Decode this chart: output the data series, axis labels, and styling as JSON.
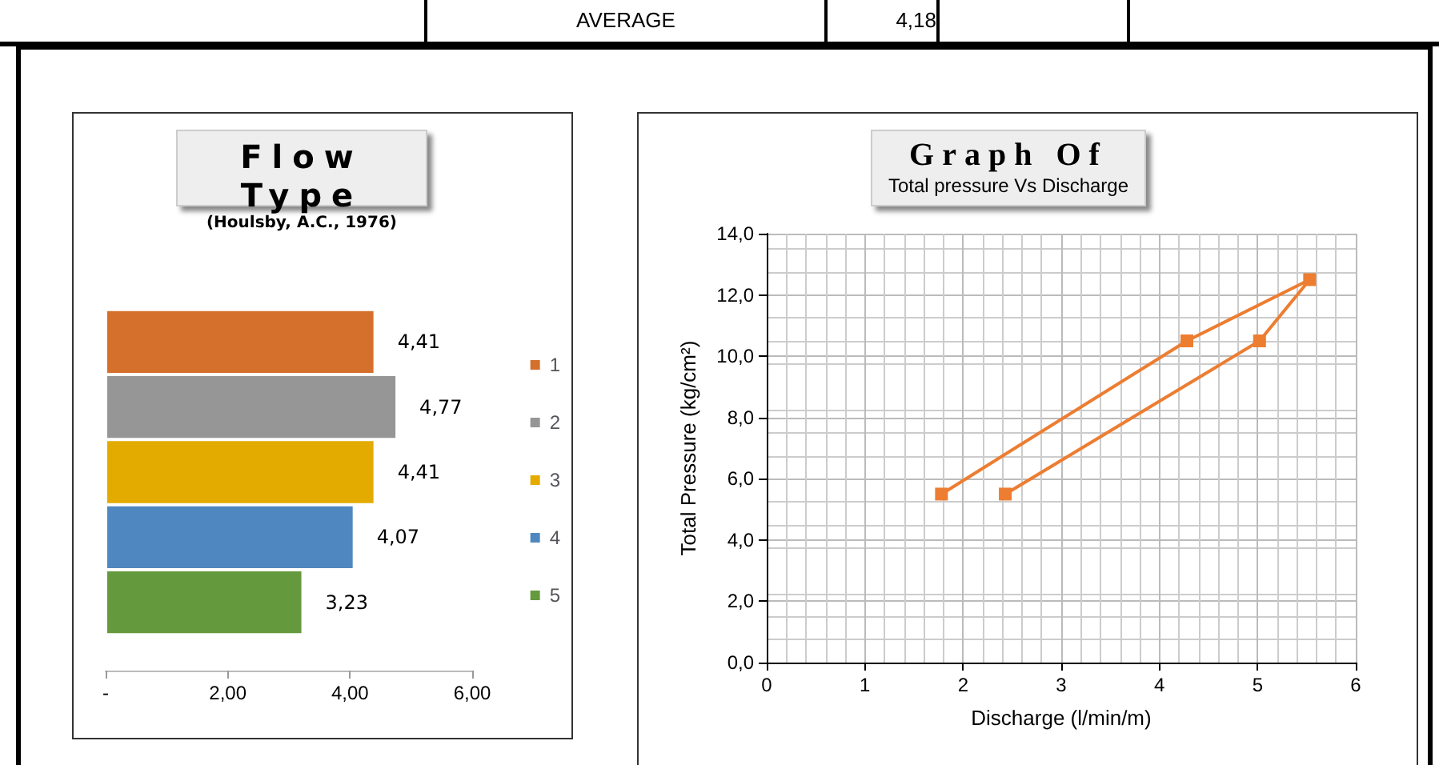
{
  "chart_data": [
    {
      "type": "bar",
      "title": "Flow Type",
      "subtitle": "(Houlsby, A.C., 1976)",
      "orientation": "horizontal",
      "categories": [
        null
      ],
      "series": [
        {
          "name": "1",
          "color": "#d4702c",
          "values": [
            4.41
          ],
          "value_labels": [
            "4,41"
          ]
        },
        {
          "name": "2",
          "color": "#969696",
          "values": [
            4.77
          ],
          "value_labels": [
            "4,77"
          ]
        },
        {
          "name": "3",
          "color": "#e3aa00",
          "values": [
            4.41
          ],
          "value_labels": [
            "4,41"
          ]
        },
        {
          "name": "4",
          "color": "#4f88c0",
          "values": [
            4.07
          ],
          "value_labels": [
            "4,07"
          ]
        },
        {
          "name": "5",
          "color": "#65993e",
          "values": [
            3.23
          ],
          "value_labels": [
            "3,23"
          ]
        }
      ],
      "xlim": [
        0,
        6
      ],
      "xticks": [
        {
          "value": 0,
          "label": "-"
        },
        {
          "value": 2,
          "label": "2,00"
        },
        {
          "value": 4,
          "label": "4,00"
        },
        {
          "value": 6,
          "label": "6,00"
        }
      ],
      "grid": false,
      "legend": "right",
      "annotations": [
        "AVERAGE",
        "4,18"
      ]
    },
    {
      "type": "line",
      "title": "Graph Of",
      "subtitle": "Total pressure Vs Discharge",
      "xlabel": "Discharge (l/min/m)",
      "ylabel": "Total Pressure (kg/cm²)",
      "x": [
        1.78,
        4.28,
        5.53,
        5.02,
        2.43
      ],
      "series": [
        {
          "color": "#ed7d31",
          "values": [
            5.5,
            10.5,
            12.5,
            10.5,
            5.5
          ]
        }
      ],
      "xlim": [
        0,
        6
      ],
      "xticks": [
        0,
        1,
        2,
        3,
        4,
        5,
        6
      ],
      "ylim": [
        0,
        14
      ],
      "yticks": [
        {
          "value": 0,
          "label": "0,0"
        },
        {
          "value": 2,
          "label": "2,0"
        },
        {
          "value": 4,
          "label": "4,0"
        },
        {
          "value": 6,
          "label": "6,0"
        },
        {
          "value": 8,
          "label": "8,0"
        },
        {
          "value": 10,
          "label": "10,0"
        },
        {
          "value": 12,
          "label": "12,0"
        },
        {
          "value": 14,
          "label": "14,0"
        }
      ],
      "grid": true,
      "marker": "square",
      "line_style": "solid",
      "legend": false
    }
  ]
}
